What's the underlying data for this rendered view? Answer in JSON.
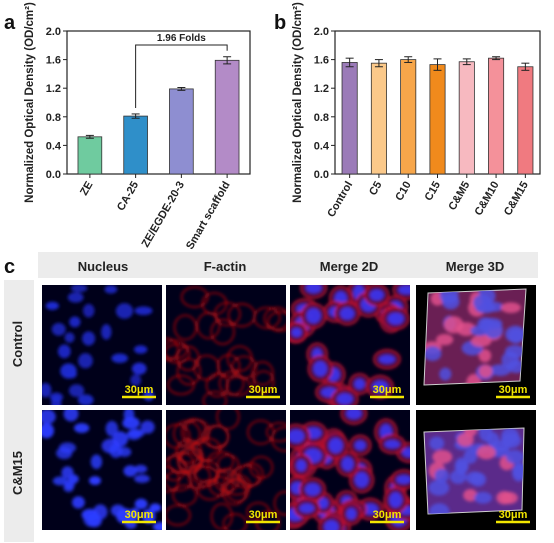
{
  "panels": {
    "a": "a",
    "b": "b",
    "c": "c"
  },
  "chart_data": [
    {
      "type": "bar",
      "ylabel": "Normalized  Optical Density (OD/cm²)",
      "categories": [
        "ZE",
        "CA-25",
        "ZE/EGDE-20-3",
        "Smart scaffold"
      ],
      "values": [
        0.52,
        0.81,
        1.19,
        1.59
      ],
      "errors": [
        0.02,
        0.03,
        0.02,
        0.05
      ],
      "colors": [
        "#6fcb9f",
        "#2f8fc9",
        "#8e8ed1",
        "#b38bc7"
      ],
      "ylim": [
        0,
        2.0
      ],
      "yticks": [
        "0.0",
        "0.4",
        "0.8",
        "1.2",
        "1.6",
        "2.0"
      ],
      "annotation": {
        "text": "1.96 Folds",
        "from": "CA-25",
        "to": "Smart scaffold"
      }
    },
    {
      "type": "bar",
      "ylabel": "Normalized Optical Density (OD/cm²)",
      "categories": [
        "Control",
        "C5",
        "C10",
        "C15",
        "C&M5",
        "C&M10",
        "C&M15"
      ],
      "values": [
        1.56,
        1.55,
        1.6,
        1.53,
        1.57,
        1.62,
        1.5
      ],
      "errors": [
        0.06,
        0.05,
        0.04,
        0.08,
        0.04,
        0.02,
        0.05
      ],
      "colors": [
        "#9b7bb8",
        "#fbc98a",
        "#f7a64a",
        "#f08a1c",
        "#f7b9c0",
        "#f4919a",
        "#f07a80"
      ],
      "ylim": [
        0,
        2.0
      ],
      "yticks": [
        "0.0",
        "0.4",
        "0.8",
        "1.2",
        "1.6",
        "2.0"
      ]
    }
  ],
  "micrographs": {
    "columns": [
      "Nucleus",
      "F-actin",
      "Merge 2D",
      "Merge 3D"
    ],
    "rows": [
      "Control",
      "C&M15"
    ],
    "scale_bar": "30μm"
  }
}
